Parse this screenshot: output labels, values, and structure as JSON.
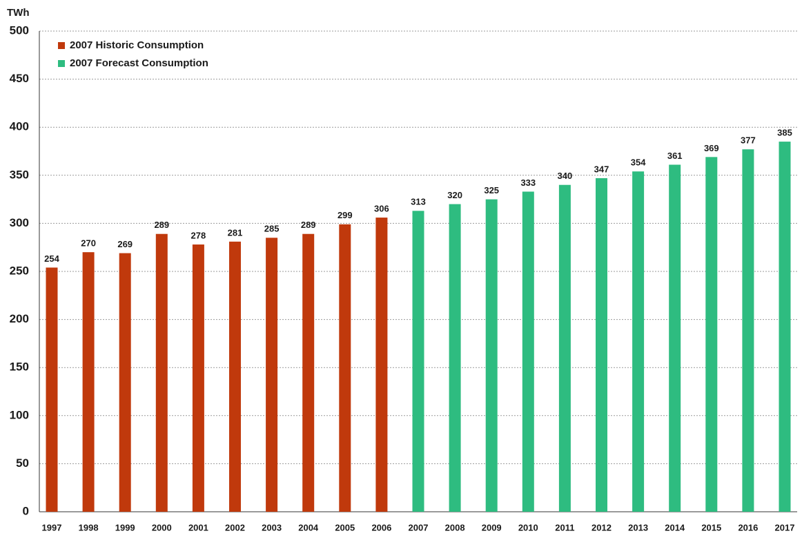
{
  "chart_data": {
    "type": "bar",
    "y_label": "TWh",
    "categories": [
      "1997",
      "1998",
      "1999",
      "2000",
      "2001",
      "2002",
      "2003",
      "2004",
      "2005",
      "2006",
      "2007",
      "2008",
      "2009",
      "2010",
      "2011",
      "2012",
      "2013",
      "2014",
      "2015",
      "2016",
      "2017"
    ],
    "series": [
      {
        "name": "2007 Historic Consumption",
        "color": "#c0390c",
        "values": [
          254,
          270,
          269,
          289,
          278,
          281,
          285,
          289,
          299,
          306,
          null,
          null,
          null,
          null,
          null,
          null,
          null,
          null,
          null,
          null,
          null
        ]
      },
      {
        "name": "2007 Forecast Consumption",
        "color": "#2ebc80",
        "values": [
          null,
          null,
          null,
          null,
          null,
          null,
          null,
          null,
          null,
          null,
          313,
          320,
          325,
          333,
          340,
          347,
          354,
          361,
          369,
          377,
          385
        ]
      }
    ],
    "ylim": [
      0,
      500
    ],
    "yticks": [
      0,
      50,
      100,
      150,
      200,
      250,
      300,
      350,
      400,
      450,
      500
    ],
    "grid": true,
    "legend": "upper left"
  }
}
